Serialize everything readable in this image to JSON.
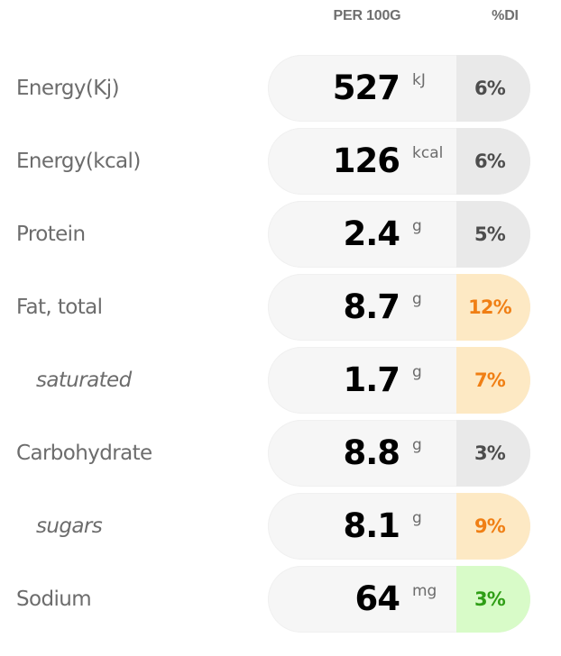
{
  "header": {
    "per_100g": "PER 100G",
    "percent_di": "%DI"
  },
  "rows": [
    {
      "label": "Energy(Kj)",
      "value": "527",
      "unit": "kJ",
      "di": "6%",
      "di_level": "grey",
      "sub": false
    },
    {
      "label": "Energy(kcal)",
      "value": "126",
      "unit": "kcal",
      "di": "6%",
      "di_level": "grey",
      "sub": false
    },
    {
      "label": "Protein",
      "value": "2.4",
      "unit": "g",
      "di": "5%",
      "di_level": "grey",
      "sub": false
    },
    {
      "label": "Fat, total",
      "value": "8.7",
      "unit": "g",
      "di": "12%",
      "di_level": "orange",
      "sub": false
    },
    {
      "label": "saturated",
      "value": "1.7",
      "unit": "g",
      "di": "7%",
      "di_level": "orange",
      "sub": true
    },
    {
      "label": "Carbohydrate",
      "value": "8.8",
      "unit": "g",
      "di": "3%",
      "di_level": "grey",
      "sub": false
    },
    {
      "label": "sugars",
      "value": "8.1",
      "unit": "g",
      "di": "9%",
      "di_level": "orange",
      "sub": true
    },
    {
      "label": "Sodium",
      "value": "64",
      "unit": "mg",
      "di": "3%",
      "di_level": "green",
      "sub": false
    }
  ],
  "colors": {
    "grey_bg": "#e9e9e9",
    "orange_bg": "#fde9c4",
    "orange_text": "#f07f14",
    "green_bg": "#d8fbc8",
    "green_text": "#2f9e16"
  }
}
